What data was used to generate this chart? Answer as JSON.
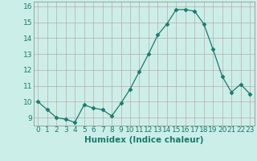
{
  "xlabel": "Humidex (Indice chaleur)",
  "x_values": [
    0,
    1,
    2,
    3,
    4,
    5,
    6,
    7,
    8,
    9,
    10,
    11,
    12,
    13,
    14,
    15,
    16,
    17,
    18,
    19,
    20,
    21,
    22,
    23
  ],
  "y_values": [
    10.0,
    9.5,
    9.0,
    8.9,
    8.7,
    9.8,
    9.6,
    9.5,
    9.1,
    9.9,
    10.8,
    11.9,
    13.0,
    14.2,
    14.9,
    15.8,
    15.8,
    15.7,
    14.9,
    13.3,
    11.6,
    10.6,
    11.1,
    10.5
  ],
  "ylim": [
    8.5,
    16.3
  ],
  "yticks": [
    9,
    10,
    11,
    12,
    13,
    14,
    15,
    16
  ],
  "xticks": [
    0,
    1,
    2,
    3,
    4,
    5,
    6,
    7,
    8,
    9,
    10,
    11,
    12,
    13,
    14,
    15,
    16,
    17,
    18,
    19,
    20,
    21,
    22,
    23
  ],
  "line_color": "#1a7a6e",
  "marker": "D",
  "marker_size": 2.5,
  "bg_color": "#cceee8",
  "grid_color": "#c0a8a8",
  "tick_label_fontsize": 6.5,
  "xlabel_fontsize": 7.5
}
